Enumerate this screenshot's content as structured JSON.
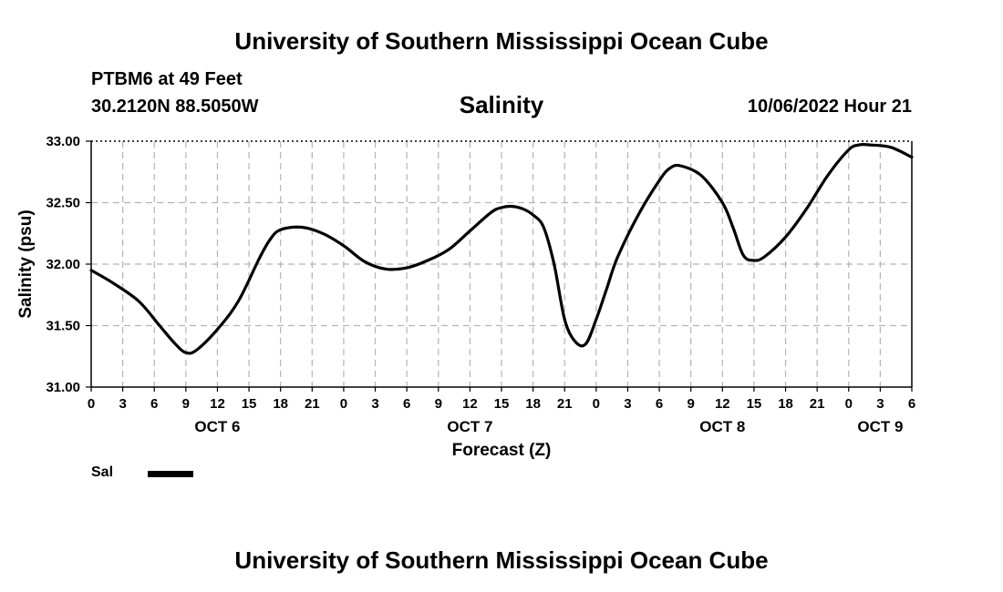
{
  "page": {
    "title_top": "University of Southern Mississippi Ocean Cube",
    "title_bottom": "University of Southern Mississippi Ocean Cube",
    "station": "PTBM6 at 49 Feet",
    "coords": "30.2120N  88.5050W",
    "timestamp": "10/06/2022 Hour 21"
  },
  "chart_data": {
    "type": "line",
    "title": "Salinity",
    "xlabel": "Forecast (Z)",
    "ylabel": "Salinity (psu)",
    "ylim": [
      31.0,
      33.0
    ],
    "yticks": [
      "31.00",
      "31.50",
      "32.00",
      "32.50",
      "33.00"
    ],
    "xlim": [
      0,
      78
    ],
    "x_unit": "hours since OCT 6 00Z",
    "xtick_labels": [
      "0",
      "3",
      "6",
      "9",
      "12",
      "15",
      "18",
      "21",
      "0",
      "3",
      "6",
      "9",
      "12",
      "15",
      "18",
      "21",
      "0",
      "3",
      "6",
      "9",
      "12",
      "15",
      "18",
      "21",
      "0",
      "3",
      "6"
    ],
    "day_labels": [
      {
        "label": "OCT 6",
        "hour": 12
      },
      {
        "label": "OCT 7",
        "hour": 36
      },
      {
        "label": "OCT 8",
        "hour": 60
      },
      {
        "label": "OCT 9",
        "hour": 75
      }
    ],
    "grid": true,
    "series": [
      {
        "name": "Sal",
        "x": [
          0,
          2,
          4.5,
          6.5,
          8,
          9,
          10,
          12,
          14,
          16,
          17,
          18,
          20,
          22,
          24,
          26,
          28,
          30,
          32,
          34,
          36,
          38,
          39,
          40,
          41,
          42,
          43,
          44,
          45,
          46,
          47,
          48,
          49,
          50,
          52,
          54,
          55,
          56,
          58,
          60,
          61,
          62,
          63,
          64,
          66,
          68,
          70,
          72,
          73,
          74,
          76,
          78
        ],
        "values": [
          31.95,
          31.85,
          31.7,
          31.5,
          31.35,
          31.28,
          31.3,
          31.47,
          31.7,
          32.05,
          32.2,
          32.28,
          32.3,
          32.25,
          32.15,
          32.02,
          31.96,
          31.97,
          32.03,
          32.12,
          32.27,
          32.42,
          32.46,
          32.47,
          32.45,
          32.4,
          32.3,
          32.0,
          31.55,
          31.37,
          31.35,
          31.55,
          31.8,
          32.05,
          32.4,
          32.68,
          32.78,
          32.8,
          32.72,
          32.5,
          32.3,
          32.07,
          32.03,
          32.06,
          32.22,
          32.45,
          32.72,
          32.93,
          32.97,
          32.97,
          32.95,
          32.87
        ]
      }
    ]
  }
}
